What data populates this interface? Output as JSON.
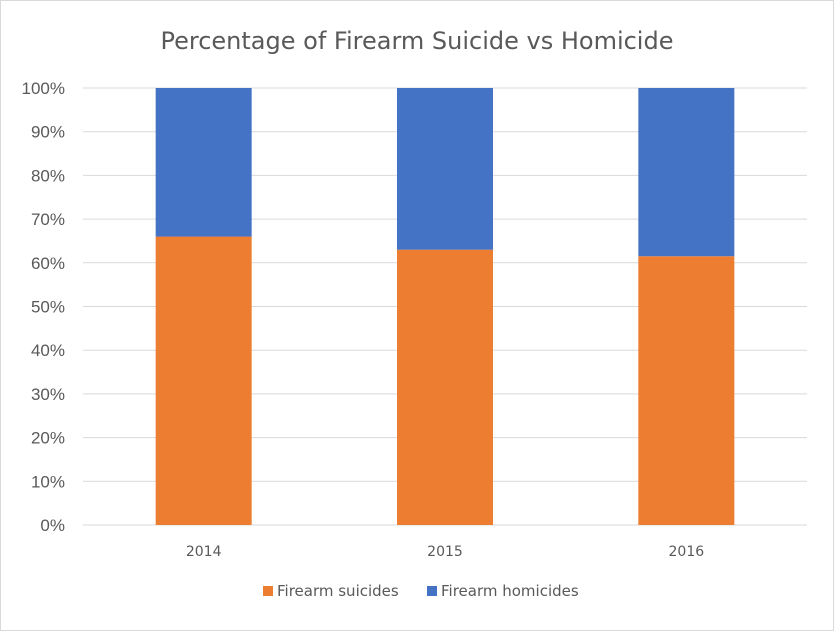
{
  "chart_data": {
    "type": "bar",
    "stacked": true,
    "percent_stacked": true,
    "title": "Percentage of Firearm Suicide vs Homicide",
    "xlabel": "",
    "ylabel": "",
    "categories": [
      "2014",
      "2015",
      "2016"
    ],
    "y_ticks": [
      "0%",
      "10%",
      "20%",
      "30%",
      "40%",
      "50%",
      "60%",
      "70%",
      "80%",
      "90%",
      "100%"
    ],
    "ylim": [
      0,
      100
    ],
    "grid": true,
    "legend_position": "bottom",
    "series": [
      {
        "name": "Firearm suicides",
        "values": [
          66,
          63,
          61.5
        ],
        "color": "#ED7D31"
      },
      {
        "name": "Firearm homicides",
        "values": [
          34,
          37,
          38.5
        ],
        "color": "#4472C4"
      }
    ]
  }
}
